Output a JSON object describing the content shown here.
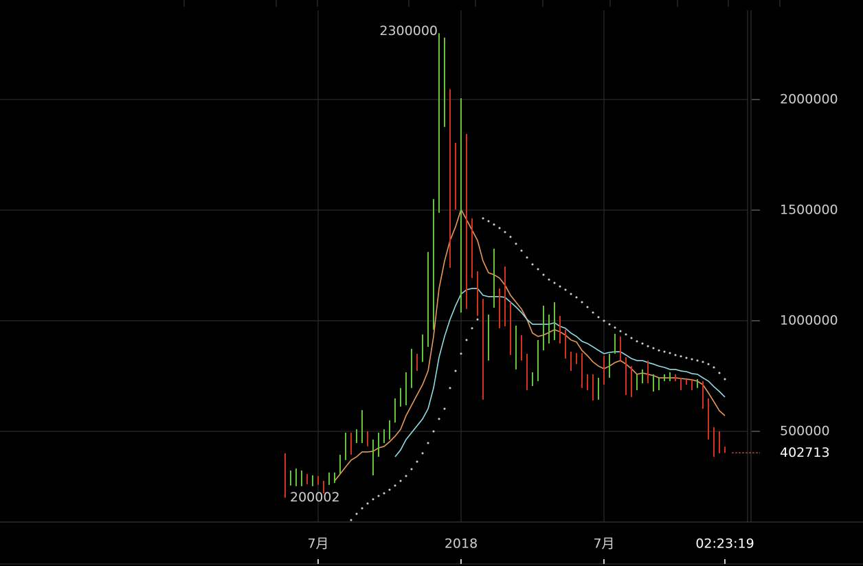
{
  "chart_data": {
    "type": "candlestick",
    "categories": [
      null,
      null,
      null,
      null,
      null,
      null,
      "7月",
      null,
      null,
      null,
      null,
      null,
      null,
      null,
      null,
      null,
      null,
      null,
      null,
      null,
      null,
      null,
      null,
      null,
      null,
      null,
      null,
      null,
      null,
      null,
      null,
      null,
      "2018",
      null,
      null,
      null,
      null,
      null,
      null,
      null,
      null,
      null,
      null,
      null,
      null,
      null,
      null,
      null,
      null,
      null,
      null,
      null,
      null,
      null,
      null,
      null,
      null,
      null,
      "7月",
      null,
      null,
      null,
      null,
      null,
      null,
      null,
      null,
      null,
      null,
      null,
      null,
      null,
      null,
      null,
      null,
      null,
      null,
      null,
      null,
      null,
      "02:23:19"
    ],
    "open": [
      401000,
      255000,
      252000,
      252000,
      307000,
      252000,
      298000,
      276000,
      258000,
      267000,
      307000,
      370000,
      494000,
      447000,
      447000,
      500000,
      301000,
      385000,
      447000,
      463000,
      540000,
      612000,
      618000,
      696000,
      851000,
      814000,
      882000,
      960000,
      1488000,
      1876000,
      2047000,
      1804000,
      1037000,
      1845000,
      1463000,
      1224000,
      1099000,
      820000,
      1059000,
      1146000,
      1245000,
      1084000,
      780000,
      935000,
      851000,
      705000,
      727000,
      866000,
      897000,
      913000,
      1022000,
      960000,
      860000,
      854000,
      854000,
      758000,
      758000,
      643000,
      842000,
      742000,
      851000,
      929000,
      835000,
      795000,
      686000,
      717000,
      820000,
      680000,
      686000,
      727000,
      727000,
      758000,
      742000,
      736000,
      733000,
      696000,
      727000,
      649000,
      519000,
      500000,
      431000
    ],
    "close": [
      200002,
      323000,
      332000,
      323000,
      261000,
      301000,
      258000,
      220000,
      314000,
      314000,
      394000,
      494000,
      394000,
      509000,
      596000,
      432000,
      463000,
      494000,
      509000,
      550000,
      649000,
      696000,
      767000,
      873000,
      773000,
      938000,
      1311000,
      1550000,
      2300000,
      2280000,
      1239000,
      1503000,
      2006000,
      1053000,
      1193000,
      1022000,
      643000,
      1028000,
      1326000,
      966000,
      975000,
      845000,
      978000,
      820000,
      686000,
      767000,
      913000,
      1068000,
      1028000,
      1084000,
      897000,
      829000,
      773000,
      804000,
      696000,
      686000,
      640000,
      742000,
      711000,
      851000,
      941000,
      820000,
      665000,
      655000,
      758000,
      780000,
      717000,
      758000,
      742000,
      758000,
      767000,
      727000,
      686000,
      711000,
      686000,
      736000,
      602000,
      463000,
      385000,
      401000,
      402713
    ],
    "up_color": "#66c43a",
    "down_color": "#d2321f",
    "overlays": [
      {
        "style": "line",
        "color": "#e89a5c",
        "values": [
          null,
          null,
          null,
          null,
          null,
          null,
          null,
          null,
          null,
          276000,
          307000,
          339000,
          370000,
          385000,
          407000,
          407000,
          410000,
          425000,
          432000,
          453000,
          478000,
          509000,
          571000,
          618000,
          665000,
          711000,
          773000,
          929000,
          1146000,
          1270000,
          1363000,
          1425000,
          1503000,
          1457000,
          1410000,
          1363000,
          1270000,
          1217000,
          1208000,
          1193000,
          1161000,
          1115000,
          1084000,
          1053000,
          1006000,
          944000,
          929000,
          935000,
          947000,
          960000,
          950000,
          935000,
          913000,
          904000,
          866000,
          842000,
          814000,
          795000,
          783000,
          795000,
          811000,
          820000,
          804000,
          783000,
          758000,
          764000,
          758000,
          752000,
          742000,
          742000,
          742000,
          742000,
          739000,
          736000,
          733000,
          727000,
          711000,
          674000,
          634000,
          593000,
          571000
        ]
      },
      {
        "style": "line",
        "color": "#8fdde6",
        "values": [
          null,
          null,
          null,
          null,
          null,
          null,
          null,
          null,
          null,
          null,
          null,
          null,
          null,
          null,
          null,
          null,
          null,
          null,
          null,
          null,
          385000,
          416000,
          463000,
          494000,
          525000,
          556000,
          602000,
          696000,
          835000,
          929000,
          1006000,
          1068000,
          1121000,
          1140000,
          1146000,
          1146000,
          1115000,
          1109000,
          1109000,
          1109000,
          1106000,
          1084000,
          1062000,
          1037000,
          1006000,
          984000,
          984000,
          984000,
          984000,
          991000,
          975000,
          966000,
          944000,
          929000,
          907000,
          897000,
          882000,
          866000,
          851000,
          857000,
          860000,
          860000,
          845000,
          829000,
          820000,
          820000,
          811000,
          804000,
          795000,
          789000,
          780000,
          780000,
          773000,
          770000,
          761000,
          758000,
          742000,
          727000,
          702000,
          680000,
          655000
        ]
      },
      {
        "style": "dots",
        "color": "#d0d0d0",
        "values": [
          null,
          null,
          null,
          null,
          null,
          null,
          null,
          null,
          null,
          null,
          null,
          null,
          99000,
          127000,
          152000,
          174000,
          193000,
          208000,
          220000,
          236000,
          255000,
          276000,
          298000,
          329000,
          363000,
          401000,
          447000,
          500000,
          556000,
          602000,
          696000,
          773000,
          851000,
          913000,
          966000,
          1006000,
          1463000,
          1450000,
          1435000,
          1419000,
          1401000,
          1379000,
          1348000,
          1317000,
          1286000,
          1255000,
          1233000,
          1208000,
          1186000,
          1171000,
          1155000,
          1140000,
          1121000,
          1106000,
          1084000,
          1062000,
          1037000,
          1016000,
          1000000,
          984000,
          969000,
          953000,
          938000,
          922000,
          907000,
          897000,
          885000,
          876000,
          866000,
          860000,
          854000,
          845000,
          839000,
          832000,
          826000,
          820000,
          814000,
          804000,
          789000,
          764000,
          736000
        ]
      }
    ],
    "ylim": [
      90000,
      2450000
    ],
    "yticks": [
      500000,
      1000000,
      1500000,
      2000000
    ],
    "grid": true
  }
}
